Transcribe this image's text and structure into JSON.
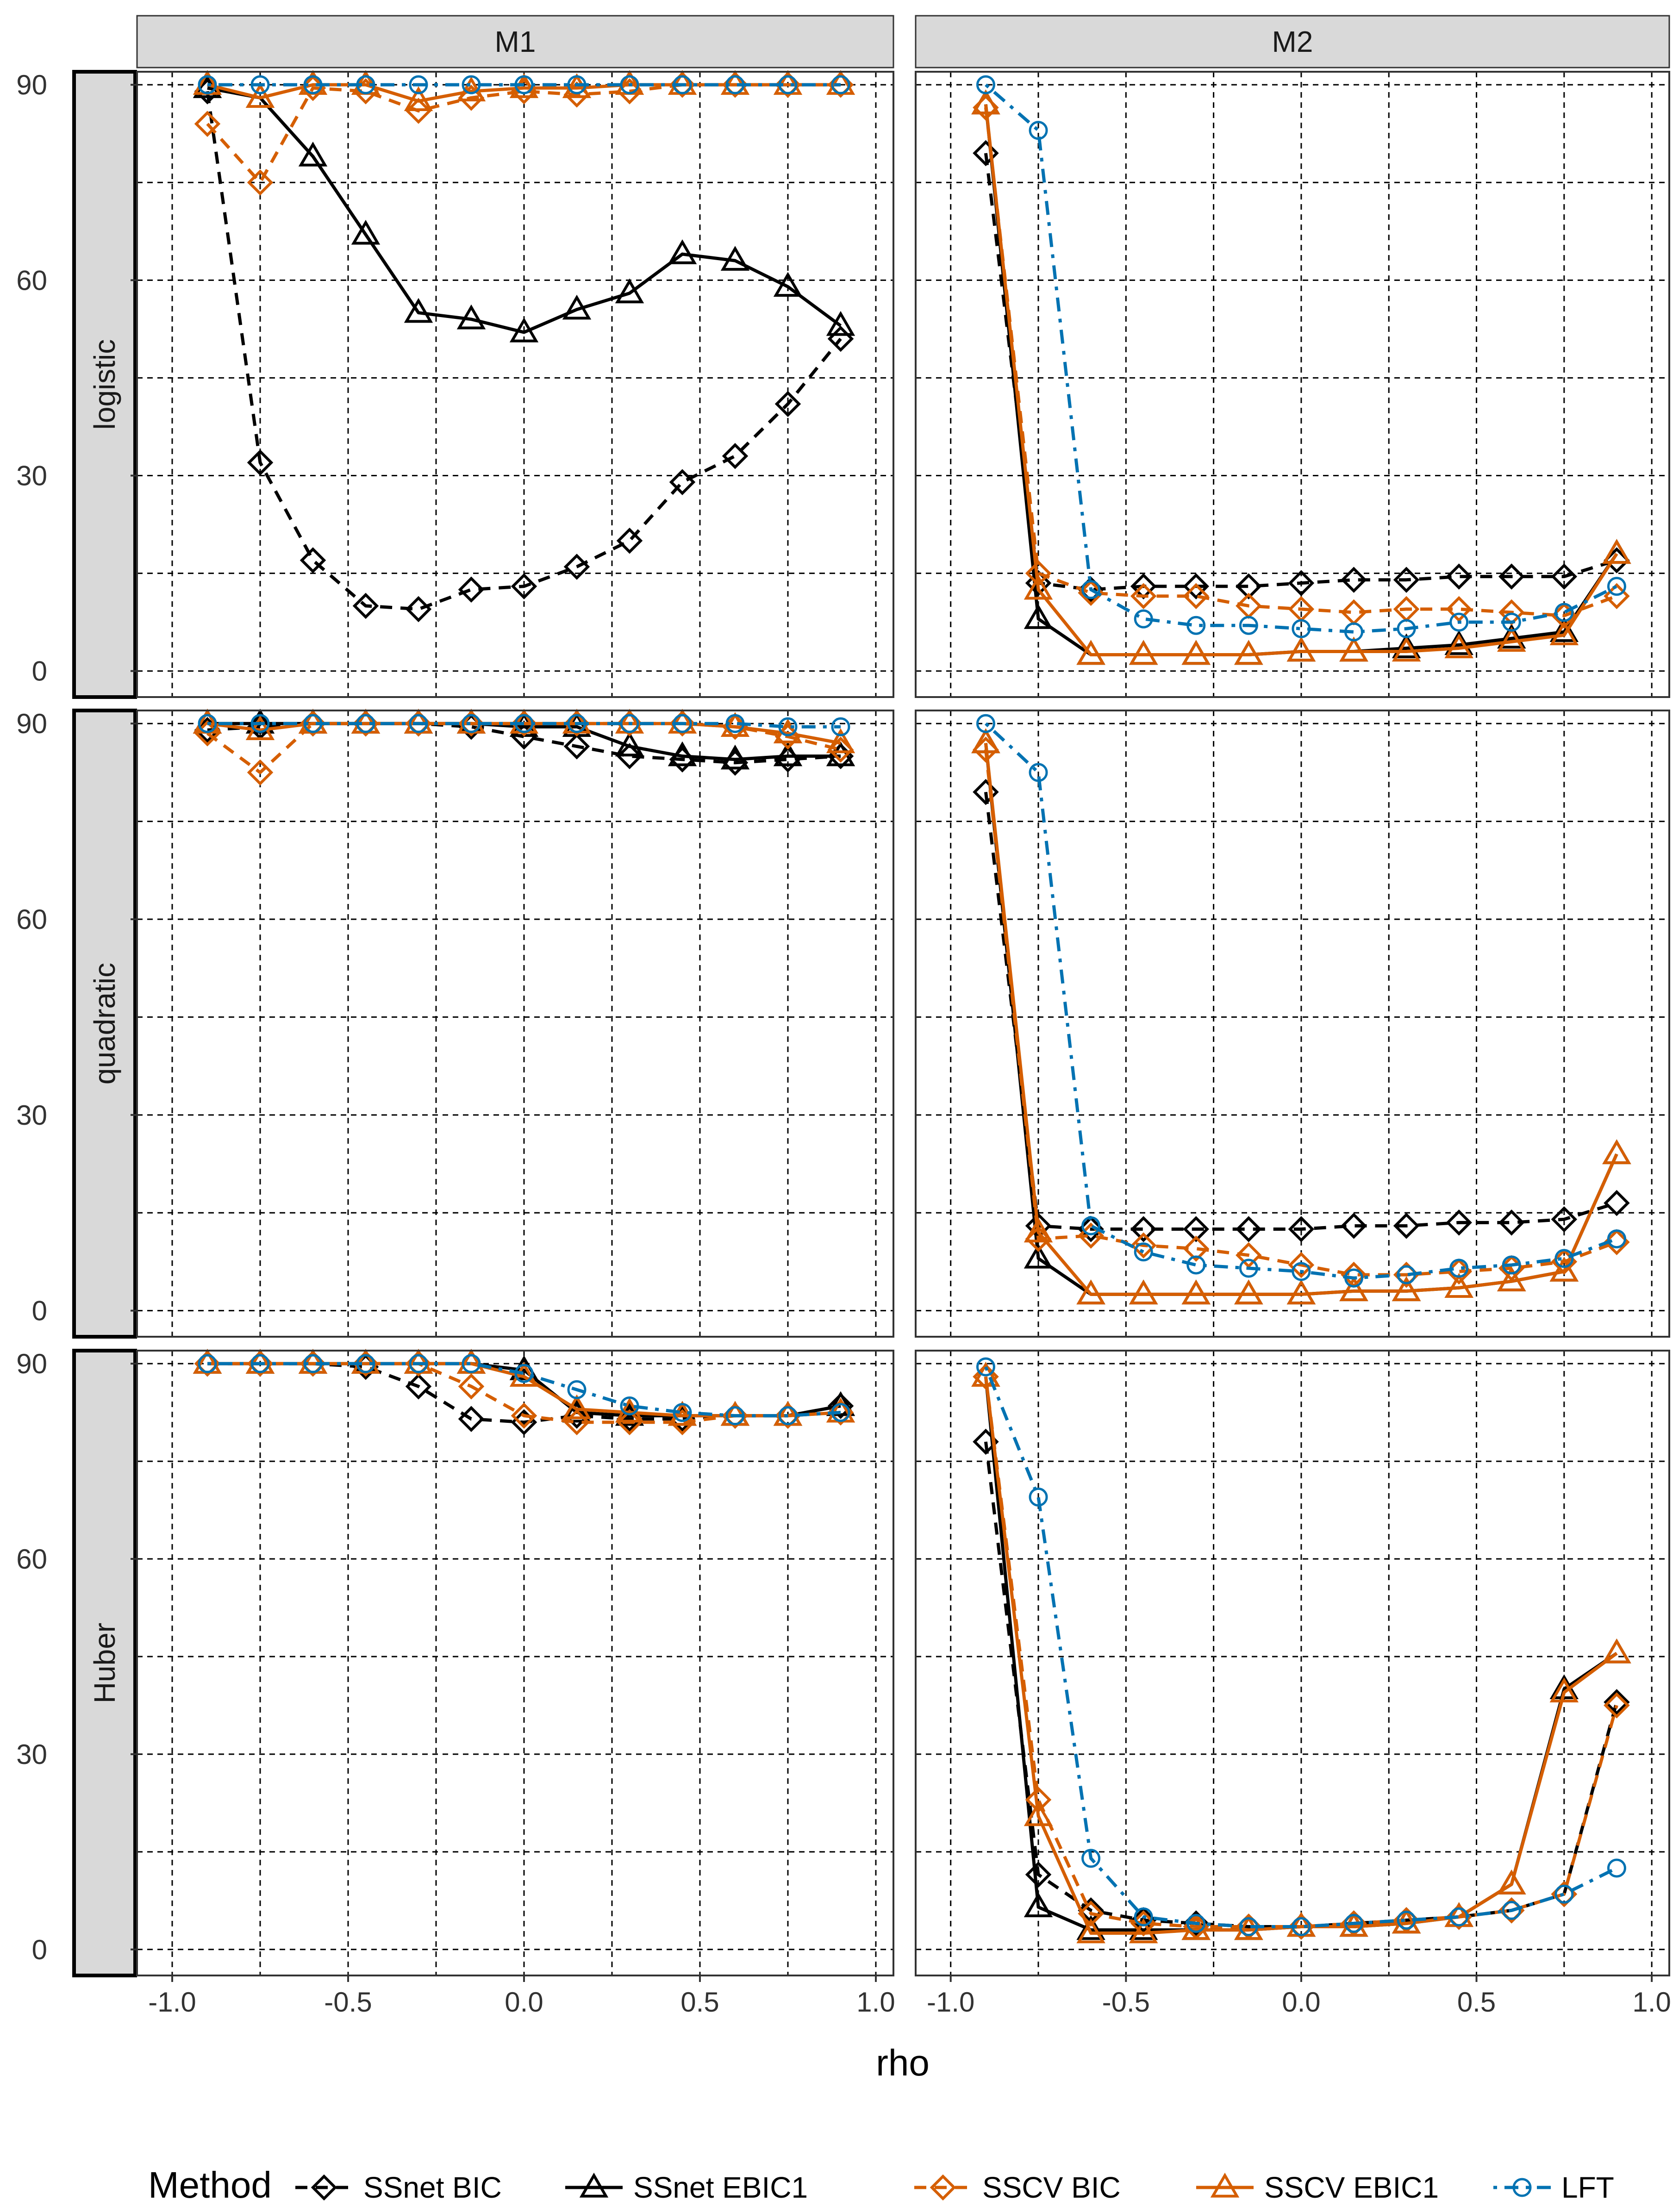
{
  "chart_data": {
    "type": "line",
    "xlabel": "rho",
    "ylabel": "",
    "xlim": [
      -1.1,
      1.05
    ],
    "ylim": [
      -4,
      92
    ],
    "x_ticks": [
      -1.0,
      -0.5,
      0.0,
      0.5,
      1.0
    ],
    "x_tick_labels": [
      "-1.0",
      "-0.5",
      "0.0",
      "0.5",
      "1.0"
    ],
    "y_ticks": [
      0,
      30,
      60,
      90
    ],
    "y_tick_labels": [
      "0",
      "30",
      "60",
      "90"
    ],
    "grid": true,
    "legend_position": "bottom",
    "legend_title": "Method",
    "methods": [
      {
        "name": "SSnet BIC",
        "color": "#000000",
        "linetype": "dashed",
        "shape": "diamond"
      },
      {
        "name": "SSnet EBIC1",
        "color": "#000000",
        "linetype": "solid",
        "shape": "triangle"
      },
      {
        "name": "SSCV BIC",
        "color": "#D55E00",
        "linetype": "dashed",
        "shape": "diamond"
      },
      {
        "name": "SSCV EBIC1",
        "color": "#D55E00",
        "linetype": "solid",
        "shape": "triangle"
      },
      {
        "name": "LFT",
        "color": "#0072B2",
        "linetype": "dotdash",
        "shape": "circle"
      }
    ],
    "columns": [
      "M1",
      "M2"
    ],
    "rows": [
      "logistic",
      "quadratic",
      "Huber"
    ],
    "x": [
      -0.9,
      -0.75,
      -0.6,
      -0.45,
      -0.3,
      -0.15,
      0.0,
      0.15,
      0.3,
      0.45,
      0.6,
      0.75,
      0.9
    ],
    "panels": [
      {
        "row": "logistic",
        "col": "M1",
        "series": [
          {
            "name": "SSnet BIC",
            "values": [
              89,
              32,
              17,
              10,
              9.5,
              12.5,
              13,
              16,
              20,
              29,
              33,
              41,
              51
            ]
          },
          {
            "name": "SSnet EBIC1",
            "values": [
              89.5,
              88,
              79,
              67,
              55,
              54,
              52,
              55.5,
              58,
              64,
              63,
              59,
              53
            ]
          },
          {
            "name": "SSCV BIC",
            "values": [
              84,
              75,
              89.5,
              89,
              86,
              88,
              89,
              88.5,
              89,
              90,
              90,
              90,
              90
            ]
          },
          {
            "name": "SSCV EBIC1",
            "values": [
              90,
              88,
              90,
              90,
              87.5,
              89,
              89.5,
              89.5,
              90,
              90,
              90,
              90,
              90
            ]
          },
          {
            "name": "LFT",
            "values": [
              90,
              90,
              90,
              90,
              90,
              90,
              90,
              90,
              90,
              90,
              90,
              90,
              90
            ]
          }
        ]
      },
      {
        "row": "logistic",
        "col": "M2",
        "series": [
          {
            "name": "SSnet BIC",
            "values": [
              79.5,
              13.5,
              12.5,
              13,
              13,
              13,
              13.5,
              14,
              14,
              14.5,
              14.5,
              14.5,
              17
            ]
          },
          {
            "name": "SSnet EBIC1",
            "values": [
              87,
              8,
              2.5,
              2.5,
              2.5,
              2.5,
              3,
              3,
              3.5,
              4,
              5,
              6,
              18
            ]
          },
          {
            "name": "SSCV BIC",
            "values": [
              86.5,
              15,
              12,
              11.5,
              11.5,
              10,
              9.5,
              9,
              9.5,
              9.5,
              9,
              8.5,
              11.5
            ]
          },
          {
            "name": "SSCV EBIC1",
            "values": [
              87,
              12.5,
              2.5,
              2.5,
              2.5,
              2.5,
              3,
              3,
              3,
              3.5,
              4.5,
              5.5,
              18
            ]
          },
          {
            "name": "LFT",
            "values": [
              90,
              83,
              12.5,
              8,
              7,
              7,
              6.5,
              6,
              6.5,
              7.5,
              7.5,
              9,
              13
            ]
          }
        ]
      },
      {
        "row": "quadratic",
        "col": "M1",
        "series": [
          {
            "name": "SSnet BIC",
            "values": [
              89,
              89.5,
              90,
              90,
              90,
              89.5,
              88,
              86.5,
              85,
              84.5,
              84,
              84.5,
              85
            ]
          },
          {
            "name": "SSnet EBIC1",
            "values": [
              90,
              90,
              90,
              90,
              90,
              90,
              89.5,
              89.5,
              86.5,
              85,
              84.5,
              85,
              85
            ]
          },
          {
            "name": "SSCV BIC",
            "values": [
              88.5,
              82.5,
              90,
              90,
              90,
              90,
              90,
              90,
              90,
              90,
              89.5,
              88,
              86
            ]
          },
          {
            "name": "SSCV EBIC1",
            "values": [
              90,
              89,
              90,
              90,
              90,
              90,
              90,
              90,
              90,
              90,
              89.5,
              88.5,
              87
            ]
          },
          {
            "name": "LFT",
            "values": [
              90,
              90,
              90,
              90,
              90,
              90,
              90,
              90,
              90,
              90,
              90,
              89.5,
              89.5
            ]
          }
        ]
      },
      {
        "row": "quadratic",
        "col": "M2",
        "series": [
          {
            "name": "SSnet BIC",
            "values": [
              79.5,
              13,
              12.5,
              12.5,
              12.5,
              12.5,
              12.5,
              13,
              13,
              13.5,
              13.5,
              14,
              16.5
            ]
          },
          {
            "name": "SSnet EBIC1",
            "values": [
              87,
              8,
              2.5,
              2.5,
              2.5,
              2.5,
              2.5,
              3,
              3,
              3.5,
              4.5,
              6,
              24
            ]
          },
          {
            "name": "SSCV BIC",
            "values": [
              86,
              11,
              11.5,
              10,
              9.5,
              8.5,
              7,
              5.5,
              5.5,
              6,
              6.5,
              7.5,
              10.5
            ]
          },
          {
            "name": "SSCV EBIC1",
            "values": [
              87,
              12,
              2.5,
              2.5,
              2.5,
              2.5,
              2.5,
              3,
              3,
              3.5,
              4.5,
              6,
              24
            ]
          },
          {
            "name": "LFT",
            "values": [
              90,
              82.5,
              13,
              9,
              7,
              6.5,
              6,
              5,
              5.5,
              6.5,
              7,
              8,
              11
            ]
          }
        ]
      },
      {
        "row": "Huber",
        "col": "M1",
        "series": [
          {
            "name": "SSnet BIC",
            "values": [
              90,
              90,
              90,
              89.5,
              86.5,
              81.5,
              81,
              82,
              81.5,
              81.5,
              82,
              82,
              83.5
            ]
          },
          {
            "name": "SSnet EBIC1",
            "values": [
              90,
              90,
              90,
              90,
              90,
              90,
              89,
              82.5,
              82,
              82,
              82,
              82,
              83.5
            ]
          },
          {
            "name": "SSCV BIC",
            "values": [
              90,
              90,
              90,
              90,
              90,
              86.5,
              82,
              81,
              81,
              81,
              82,
              82,
              82.5
            ]
          },
          {
            "name": "SSCV EBIC1",
            "values": [
              90,
              90,
              90,
              90,
              90,
              90,
              88,
              83,
              82.5,
              82,
              82,
              82,
              82.5
            ]
          },
          {
            "name": "LFT",
            "values": [
              90,
              90,
              90,
              90,
              90,
              90,
              88.5,
              86,
              83.5,
              82.5,
              82,
              82,
              82.5
            ]
          }
        ]
      },
      {
        "row": "Huber",
        "col": "M2",
        "series": [
          {
            "name": "SSnet BIC",
            "values": [
              78,
              11.5,
              6,
              4.5,
              4,
              3.5,
              3.5,
              4,
              4.5,
              5,
              6,
              8.5,
              38
            ]
          },
          {
            "name": "SSnet EBIC1",
            "values": [
              88,
              6.5,
              3,
              3,
              3,
              3,
              3.5,
              3.5,
              4,
              5,
              10,
              40,
              45.5
            ]
          },
          {
            "name": "SSCV BIC",
            "values": [
              88,
              23,
              5.5,
              4,
              3.5,
              3.5,
              3.5,
              4,
              4.5,
              5,
              6,
              8.5,
              37.5
            ]
          },
          {
            "name": "SSCV EBIC1",
            "values": [
              88,
              20.5,
              2.5,
              2.5,
              3,
              3,
              3.5,
              3.5,
              4,
              5,
              10,
              39.5,
              45.5
            ]
          },
          {
            "name": "LFT",
            "values": [
              89.5,
              69.5,
              14,
              5,
              4,
              3.5,
              3.5,
              4,
              4.5,
              5,
              6,
              8.5,
              12.5
            ]
          }
        ]
      }
    ]
  }
}
